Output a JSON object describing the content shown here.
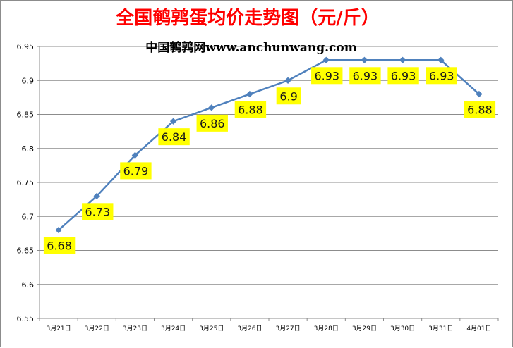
{
  "chart_data": {
    "type": "line",
    "title": "全国鹌鹑蛋均价走势图（元/斤）",
    "subtitle": "中国鹌鹑网www.anchunwang.com",
    "xlabel": "",
    "ylabel": "",
    "categories": [
      "3月21日",
      "3月22日",
      "3月23日",
      "3月24日",
      "3月25日",
      "3月26日",
      "3月27日",
      "3月28日",
      "3月29日",
      "3月30日",
      "3月31日",
      "4月01日"
    ],
    "series": [
      {
        "values": [
          6.68,
          6.73,
          6.79,
          6.84,
          6.86,
          6.88,
          6.9,
          6.93,
          6.93,
          6.93,
          6.93,
          6.88
        ]
      }
    ],
    "data_labels": [
      "6.68",
      "6.73",
      "6.79",
      "6.84",
      "6.86",
      "6.88",
      "6.9",
      "6.93",
      "6.93",
      "6.93",
      "6.93",
      "6.88"
    ],
    "y_ticks": [
      "6.55",
      "6.6",
      "6.65",
      "6.7",
      "6.75",
      "6.8",
      "6.85",
      "6.9",
      "6.95"
    ],
    "ylim": [
      6.55,
      6.95
    ],
    "grid": true,
    "legend": "none",
    "colors": {
      "line": "#4f81bd",
      "marker": "#4f81bd",
      "label_bg": "#ffff00",
      "title": "#ff0000",
      "grid": "#8c8c8c"
    }
  }
}
